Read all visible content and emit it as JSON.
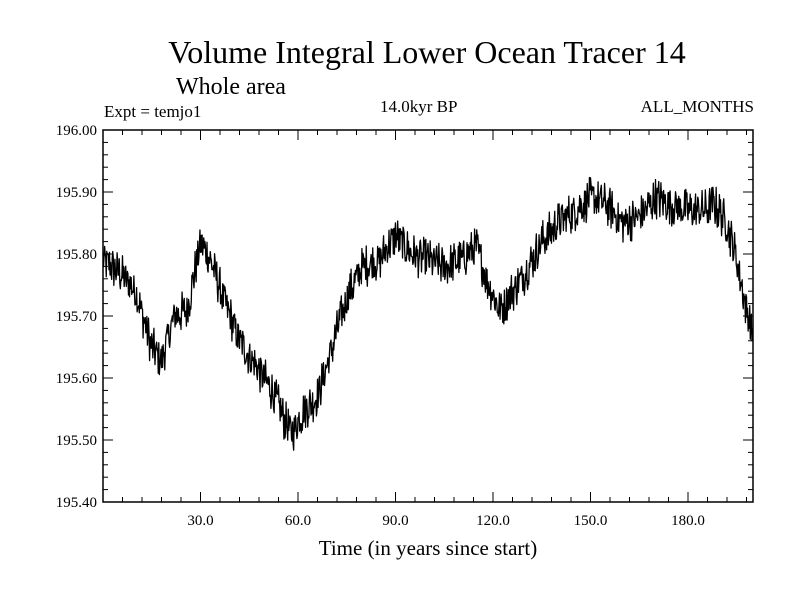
{
  "chart_data": {
    "type": "line",
    "title": "Volume Integral Lower Ocean Tracer 14",
    "subtitle": "Whole area",
    "annotations": {
      "left": "Expt = temjo1",
      "center": "14.0kyr BP",
      "right": "ALL_MONTHS"
    },
    "xlabel": "Time (in years since start)",
    "ylabel": "",
    "xlim": [
      0,
      200
    ],
    "ylim": [
      195.4,
      196.0
    ],
    "x_ticks": [
      30,
      60,
      90,
      120,
      150,
      180
    ],
    "x_tick_labels": [
      "30.0",
      "60.0",
      "90.0",
      "120.0",
      "150.0",
      "180.0"
    ],
    "y_ticks": [
      195.4,
      195.5,
      195.6,
      195.7,
      195.8,
      195.9,
      196.0
    ],
    "y_tick_labels": [
      "195.40",
      "195.50",
      "195.60",
      "195.70",
      "195.80",
      "195.90",
      "196.00"
    ],
    "series": [
      {
        "name": "Lower Ocean Tracer 14",
        "color": "#000000",
        "trend": {
          "x": [
            0,
            5,
            10,
            15,
            18,
            22,
            26,
            30,
            33,
            37,
            42,
            47,
            52,
            56,
            58,
            62,
            66,
            70,
            75,
            80,
            85,
            90,
            95,
            100,
            105,
            110,
            115,
            118,
            122,
            126,
            130,
            135,
            140,
            145,
            150,
            155,
            160,
            165,
            170,
            175,
            180,
            185,
            188,
            192,
            195,
            198,
            200
          ],
          "y": [
            195.79,
            195.77,
            195.74,
            195.65,
            195.63,
            195.7,
            195.71,
            195.82,
            195.79,
            195.73,
            195.66,
            195.62,
            195.58,
            195.53,
            195.51,
            195.55,
            195.57,
            195.64,
            195.73,
            195.78,
            195.79,
            195.83,
            195.8,
            195.79,
            195.78,
            195.79,
            195.81,
            195.76,
            195.71,
            195.74,
            195.77,
            195.82,
            195.85,
            195.87,
            195.89,
            195.88,
            195.85,
            195.86,
            195.89,
            195.88,
            195.87,
            195.87,
            195.88,
            195.85,
            195.79,
            195.71,
            195.67
          ]
        },
        "noise_amplitude": 0.035,
        "samples": 1200
      }
    ]
  }
}
